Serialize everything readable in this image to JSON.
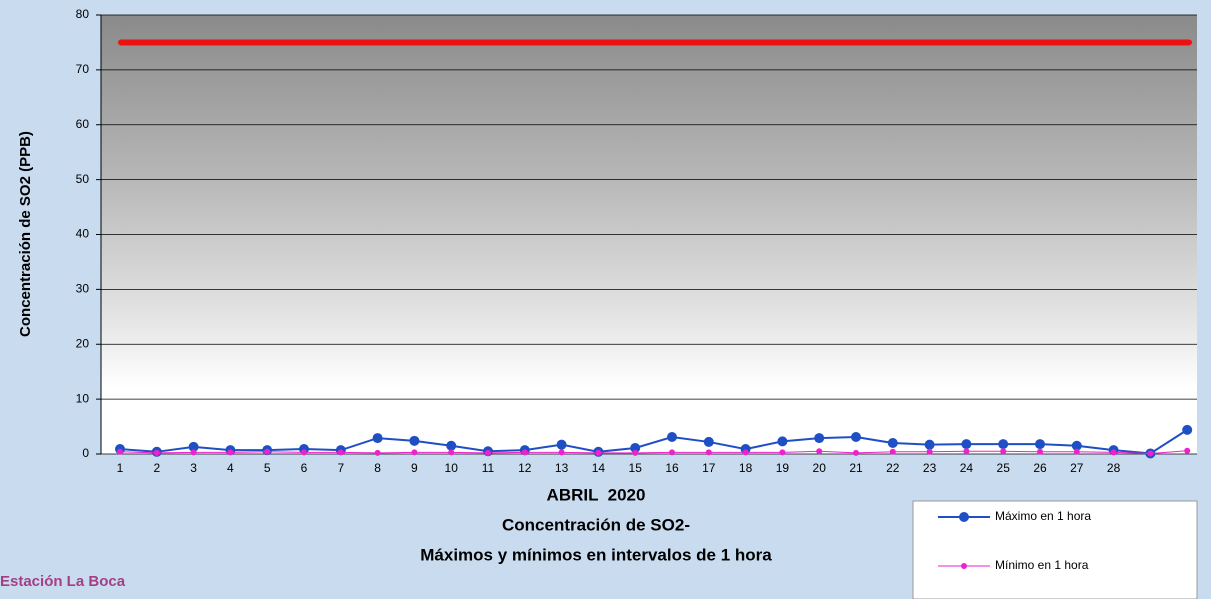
{
  "chart_data": {
    "type": "line",
    "y_label": "Concentración de SO2 (PPB)",
    "x_label": "ABRIL  2020",
    "title": "Concentración de SO2-",
    "subtitle": "Máximos y mínimos en intervalos de 1 hora",
    "station": "Estación La Boca",
    "categories": [
      "1",
      "2",
      "3",
      "4",
      "5",
      "6",
      "7",
      "8",
      "9",
      "10",
      "11",
      "12",
      "13",
      "14",
      "15",
      "16",
      "17",
      "18",
      "19",
      "20",
      "21",
      "22",
      "23",
      "24",
      "25",
      "26",
      "27",
      "28",
      null,
      null
    ],
    "series": [
      {
        "name": "Máximo en 1 hora",
        "color": "#1f4fc4",
        "marker_size": 5,
        "values": [
          0.9,
          0.4,
          1.3,
          0.7,
          0.7,
          0.9,
          0.7,
          2.9,
          2.4,
          1.5,
          0.5,
          0.7,
          1.7,
          0.4,
          1.1,
          3.1,
          2.2,
          0.9,
          2.3,
          2.9,
          3.1,
          2.0,
          1.7,
          1.8,
          1.8,
          1.8,
          1.5,
          0.7,
          0.1,
          4.4
        ]
      },
      {
        "name": "Mínimo en 1 hora",
        "color": "#ee22cc",
        "marker_size": 3,
        "values": [
          0.4,
          0.2,
          0.3,
          0.3,
          0.4,
          0.3,
          0.3,
          0.2,
          0.3,
          0.3,
          0.2,
          0.3,
          0.3,
          0.2,
          0.2,
          0.3,
          0.3,
          0.3,
          0.3,
          0.5,
          0.2,
          0.4,
          0.4,
          0.5,
          0.5,
          0.4,
          0.4,
          0.3,
          0.1,
          0.6
        ]
      }
    ],
    "reference_line": {
      "value": 75,
      "color": "#ee1111"
    },
    "ylim": [
      0,
      80
    ],
    "yticks": [
      0,
      10,
      20,
      30,
      40,
      50,
      60,
      70,
      80
    ],
    "grid": true
  }
}
